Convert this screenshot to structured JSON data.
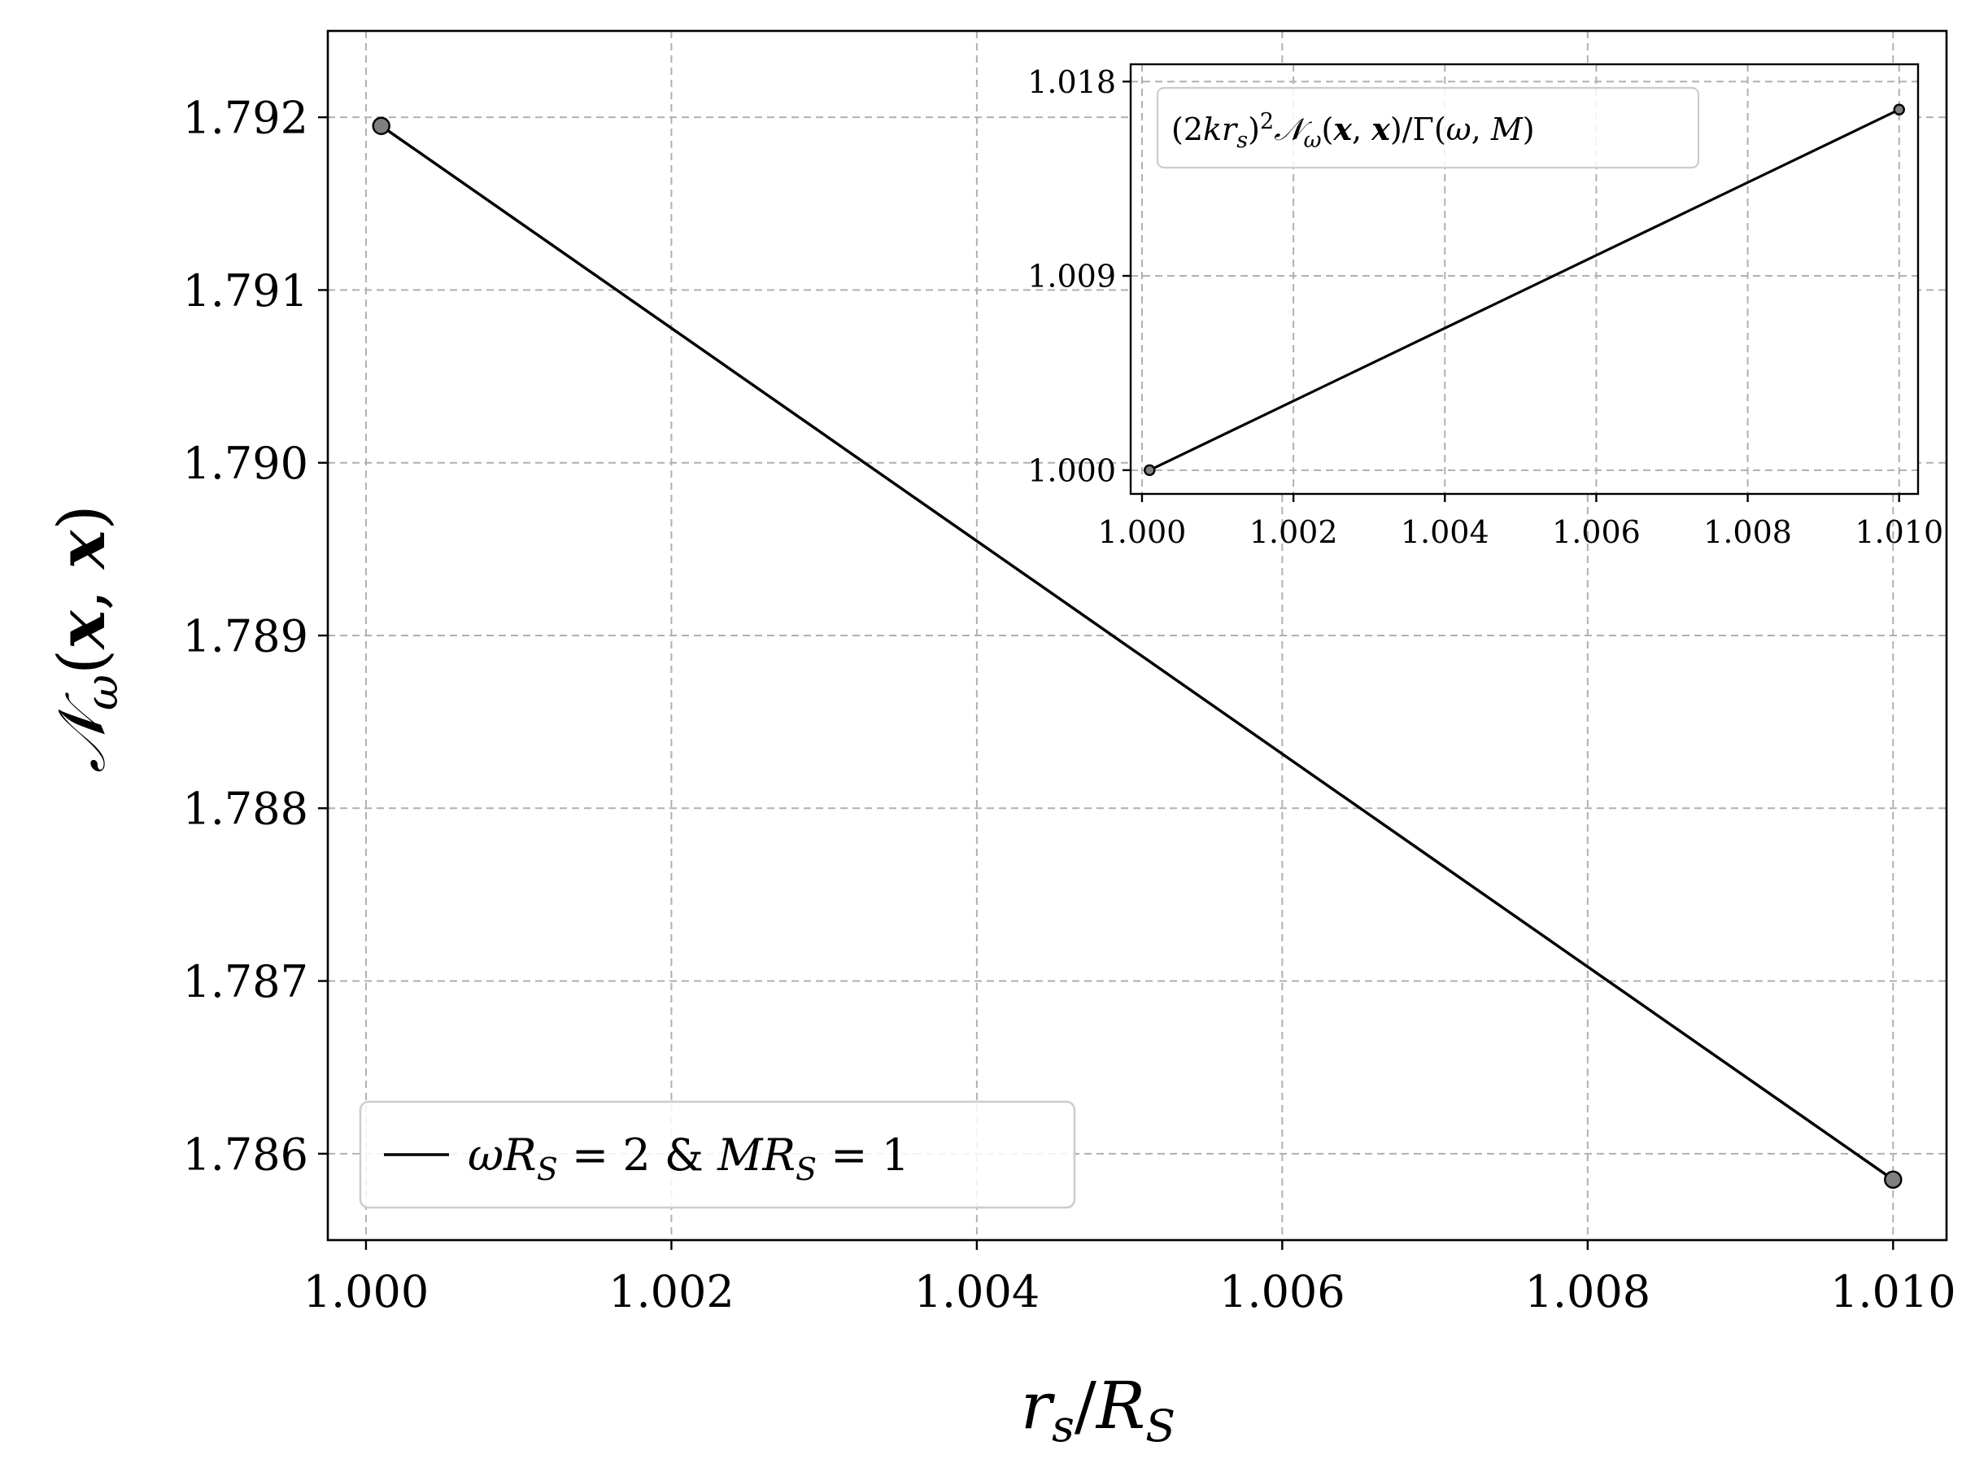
{
  "chart_data": [
    {
      "type": "line",
      "role": "main",
      "xlabel": "r_s/R_S",
      "ylabel": "𝒩_ω(x, x)",
      "xlim": [
        0.99975,
        1.01035
      ],
      "ylim": [
        1.7855,
        1.7925
      ],
      "xticks": [
        1.0,
        1.002,
        1.004,
        1.006,
        1.008,
        1.01
      ],
      "xtick_labels": [
        "1.000",
        "1.002",
        "1.004",
        "1.006",
        "1.008",
        "1.010"
      ],
      "yticks": [
        1.786,
        1.787,
        1.788,
        1.789,
        1.79,
        1.791,
        1.792
      ],
      "ytick_labels": [
        "1.786",
        "1.787",
        "1.788",
        "1.789",
        "1.790",
        "1.791",
        "1.792"
      ],
      "grid": true,
      "legend_position": "bottom-left",
      "series": [
        {
          "name": "ωR_S = 2 & MR_S = 1",
          "color": "#000000",
          "marker_color": "#808080",
          "x": [
            1.0001,
            1.01
          ],
          "y": [
            1.79195,
            1.78585
          ]
        }
      ]
    },
    {
      "type": "line",
      "role": "inset",
      "xlim": [
        0.99985,
        1.01025
      ],
      "ylim": [
        0.9989,
        1.0188
      ],
      "xticks": [
        1.0,
        1.002,
        1.004,
        1.006,
        1.008,
        1.01
      ],
      "xtick_labels": [
        "1.000",
        "1.002",
        "1.004",
        "1.006",
        "1.008",
        "1.010"
      ],
      "yticks": [
        1.0,
        1.009,
        1.018
      ],
      "ytick_labels": [
        "1.000",
        "1.009",
        "1.018"
      ],
      "grid": true,
      "legend_position": "top-left",
      "series": [
        {
          "name": "(2kr_s)²𝒩_ω(x, x)/Γ(ω, M)",
          "color": "#000000",
          "marker_color": "#808080",
          "x": [
            1.0001,
            1.01
          ],
          "y": [
            1.0,
            1.0167
          ]
        }
      ]
    }
  ]
}
